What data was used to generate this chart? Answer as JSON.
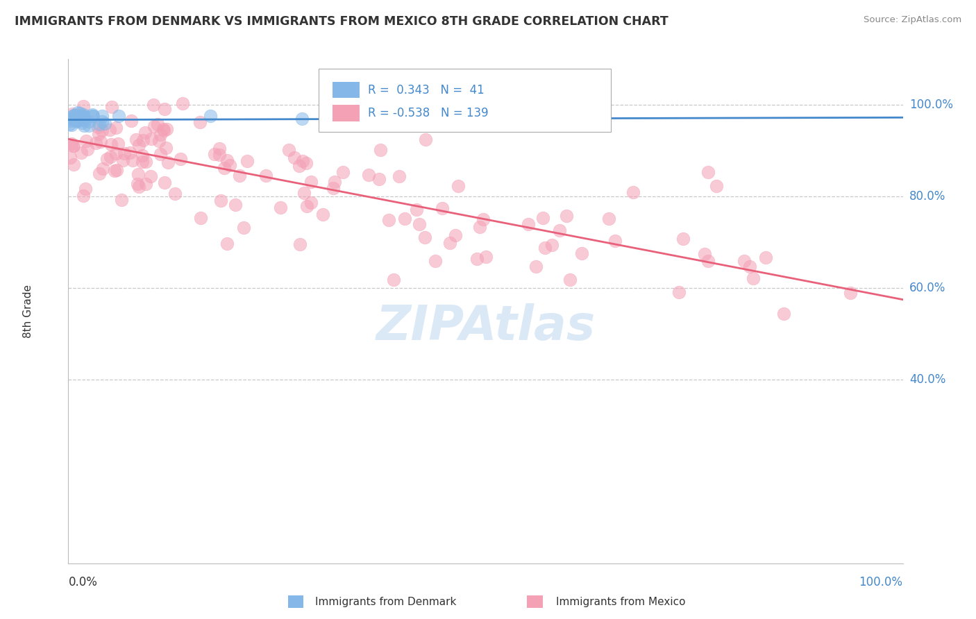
{
  "title": "IMMIGRANTS FROM DENMARK VS IMMIGRANTS FROM MEXICO 8TH GRADE CORRELATION CHART",
  "source": "Source: ZipAtlas.com",
  "ylabel": "8th Grade",
  "legend_r_denmark": "0.343",
  "legend_n_denmark": "41",
  "legend_r_mexico": "-0.538",
  "legend_n_mexico": "139",
  "denmark_color": "#85b8e8",
  "mexico_color": "#f4a0b5",
  "denmark_line_color": "#4488cc",
  "mexico_line_color": "#e8607a",
  "background_color": "#ffffff",
  "grid_color": "#c8c8c8",
  "ytick_color": "#4488cc",
  "title_color": "#333333",
  "source_color": "#888888",
  "label_color": "#333333",
  "watermark_color": "#b8d4ee",
  "xlim": [
    0.0,
    1.0
  ],
  "ylim": [
    0.0,
    1.1
  ],
  "yticks": [
    0.4,
    0.6,
    0.8,
    1.0
  ],
  "ytick_labels": [
    "40.0%",
    "60.0%",
    "80.0%",
    "100.0%"
  ],
  "mx_line_start_y": 0.925,
  "mx_line_end_y": 0.575,
  "dk_line_start_y": 0.967,
  "dk_line_end_y": 0.972
}
